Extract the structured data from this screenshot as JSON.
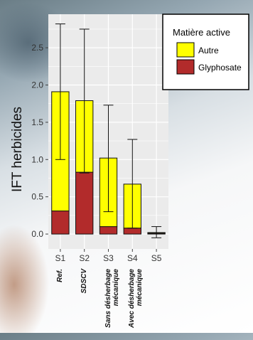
{
  "chart_data": {
    "type": "bar",
    "stacked": true,
    "categories": [
      "S1",
      "S2",
      "S3",
      "S4",
      "S5"
    ],
    "category_notes": [
      "Ref.",
      "SDSCV",
      "Sans désherbage\nmécanique",
      "Avec désherbage\nmécanique",
      ""
    ],
    "series": [
      {
        "name": "Glyphosate",
        "values": [
          0.31,
          0.83,
          0.1,
          0.08,
          0.01
        ],
        "color": "#b22b2b"
      },
      {
        "name": "Autre",
        "values": [
          1.6,
          0.96,
          0.92,
          0.59,
          0.01
        ],
        "color": "#ffff00"
      }
    ],
    "error_bars": [
      {
        "low": 1.0,
        "high": 2.82
      },
      {
        "low": 0.82,
        "high": 2.75
      },
      {
        "low": 0.3,
        "high": 1.73
      },
      {
        "low": 0.08,
        "high": 1.27
      },
      {
        "low": -0.05,
        "high": 0.1
      }
    ],
    "ylabel": "IFT herbicides",
    "xlabel": "",
    "ylim": [
      -0.2,
      2.95
    ],
    "yticks": [
      "0.0",
      "0.5",
      "1.0",
      "1.5",
      "2.0",
      "2.5"
    ],
    "ytick_values": [
      0.0,
      0.5,
      1.0,
      1.5,
      2.0,
      2.5
    ],
    "legend": {
      "title": "Matière active",
      "entries": [
        {
          "label": "Autre",
          "color": "#ffff00"
        },
        {
          "label": "Glyphosate",
          "color": "#b22b2b"
        }
      ],
      "position": "top-right"
    },
    "grid": true,
    "panel_background": "#ebebeb"
  }
}
